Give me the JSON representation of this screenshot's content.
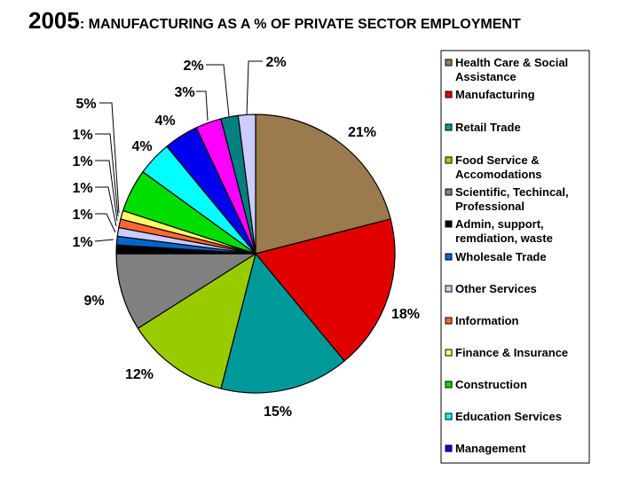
{
  "chart_data": {
    "type": "pie",
    "title_year": "2005",
    "title_rest": ": MANUFACTURING AS A % OF PRIVATE SECTOR EMPLOYMENT",
    "legend_position": "right",
    "slices": [
      {
        "name": "Health Care & Social Assistance",
        "legend_lines": [
          "Health Care & Social",
          "Assistance"
        ],
        "value": 21,
        "label": "21%",
        "color": "#9b7a4d"
      },
      {
        "name": "Manufacturing",
        "legend_lines": [
          "Manufacturing"
        ],
        "value": 18,
        "label": "18%",
        "color": "#e00000"
      },
      {
        "name": "Retail Trade",
        "legend_lines": [
          "Retail Trade"
        ],
        "value": 15,
        "label": "15%",
        "color": "#009999"
      },
      {
        "name": "Food Service & Accomodations",
        "legend_lines": [
          "Food Service &",
          "Accomodations"
        ],
        "value": 12,
        "label": "12%",
        "color": "#99cc00"
      },
      {
        "name": "Scientific, Techincal, Professional",
        "legend_lines": [
          "Scientific, Techincal,",
          "Professional"
        ],
        "value": 9,
        "label": "9%",
        "color": "#808080"
      },
      {
        "name": "Admin, support, remdiation, waste",
        "legend_lines": [
          "Admin, support,",
          "remdiation, waste"
        ],
        "value": 1,
        "label": "1%",
        "color": "#000000"
      },
      {
        "name": "Wholesale Trade",
        "legend_lines": [
          "Wholesale Trade"
        ],
        "value": 1,
        "label": "1%",
        "color": "#0066cc"
      },
      {
        "name": "Other Services",
        "legend_lines": [
          "Other Services"
        ],
        "value": 1,
        "label": "1%",
        "color": "#ccccff"
      },
      {
        "name": "Information",
        "legend_lines": [
          "Information"
        ],
        "value": 1,
        "label": "1%",
        "color": "#ff6633"
      },
      {
        "name": "Finance & Insurance",
        "legend_lines": [
          "Finance & Insurance"
        ],
        "value": 1,
        "label": "1%",
        "color": "#ffff66"
      },
      {
        "name": "Construction",
        "legend_lines": [
          "Construction"
        ],
        "value": 5,
        "label": "5%",
        "color": "#00dd00"
      },
      {
        "name": "Education Services",
        "legend_lines": [
          "Education Services"
        ],
        "value": 4,
        "label": "4%",
        "color": "#00ffff"
      },
      {
        "name": "Management",
        "legend_lines": [
          "Management"
        ],
        "value": 4,
        "label": "4%",
        "color": "#0000ee"
      },
      {
        "name": "",
        "legend_lines": [],
        "value": 3,
        "label": "3%",
        "color": "#ff00ff"
      },
      {
        "name": "",
        "legend_lines": [],
        "value": 2,
        "label": "2%",
        "color": "#008080"
      },
      {
        "name": "",
        "legend_lines": [],
        "value": 2,
        "label": "2%",
        "color": "#ccccff"
      }
    ]
  }
}
